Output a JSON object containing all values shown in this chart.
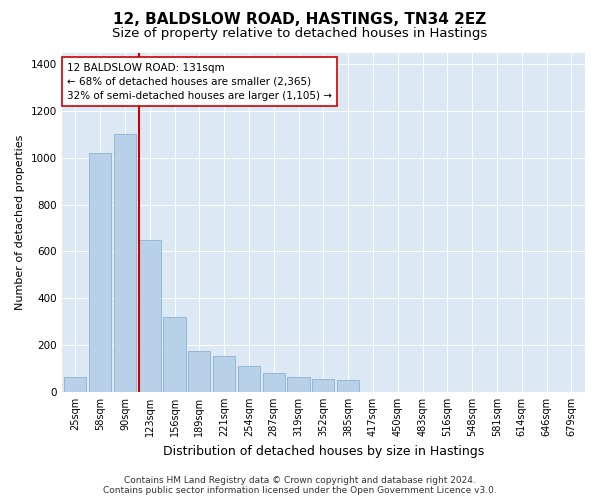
{
  "title": "12, BALDSLOW ROAD, HASTINGS, TN34 2EZ",
  "subtitle": "Size of property relative to detached houses in Hastings",
  "xlabel": "Distribution of detached houses by size in Hastings",
  "ylabel": "Number of detached properties",
  "categories": [
    "25sqm",
    "58sqm",
    "90sqm",
    "123sqm",
    "156sqm",
    "189sqm",
    "221sqm",
    "254sqm",
    "287sqm",
    "319sqm",
    "352sqm",
    "385sqm",
    "417sqm",
    "450sqm",
    "483sqm",
    "516sqm",
    "548sqm",
    "581sqm",
    "614sqm",
    "646sqm",
    "679sqm"
  ],
  "values": [
    65,
    1020,
    1100,
    650,
    320,
    175,
    155,
    110,
    80,
    65,
    55,
    50,
    0,
    0,
    0,
    0,
    0,
    0,
    0,
    0,
    0
  ],
  "bar_color": "#b8d0e8",
  "bar_edge_color": "#7aaace",
  "vline_color": "#cc0000",
  "annotation_text": "12 BALDSLOW ROAD: 131sqm\n← 68% of detached houses are smaller (2,365)\n32% of semi-detached houses are larger (1,105) →",
  "annotation_box_color": "#ffffff",
  "annotation_border_color": "#cc0000",
  "ylim": [
    0,
    1450
  ],
  "yticks": [
    0,
    200,
    400,
    600,
    800,
    1000,
    1200,
    1400
  ],
  "plot_background": "#dce9f5",
  "footer_line1": "Contains HM Land Registry data © Crown copyright and database right 2024.",
  "footer_line2": "Contains public sector information licensed under the Open Government Licence v3.0.",
  "title_fontsize": 11,
  "subtitle_fontsize": 9.5,
  "xlabel_fontsize": 9,
  "ylabel_fontsize": 8,
  "tick_fontsize": 7.5,
  "annotation_fontsize": 7.5,
  "footer_fontsize": 6.5
}
